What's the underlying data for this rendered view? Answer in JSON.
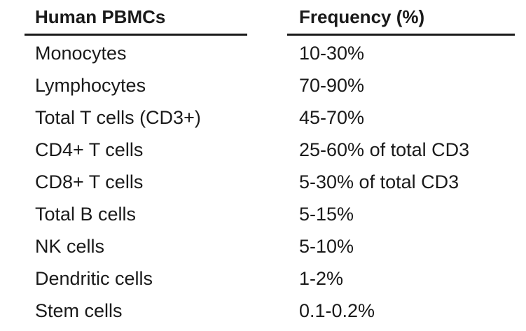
{
  "table": {
    "header": [
      "Human PBMCs",
      "Frequency (%)"
    ],
    "rows": [
      [
        "Monocytes",
        "10-30%"
      ],
      [
        "Lymphocytes",
        "70-90%"
      ],
      [
        "Total T cells (CD3+)",
        "45-70%"
      ],
      [
        "CD4+ T cells",
        "25-60% of total CD3"
      ],
      [
        "CD8+ T cells",
        "5-30% of total CD3"
      ],
      [
        "Total B cells",
        "5-15%"
      ],
      [
        "NK cells",
        "5-10%"
      ],
      [
        "Dendritic cells",
        "1-2%"
      ],
      [
        "Stem cells",
        "0.1-0.2%"
      ]
    ]
  }
}
